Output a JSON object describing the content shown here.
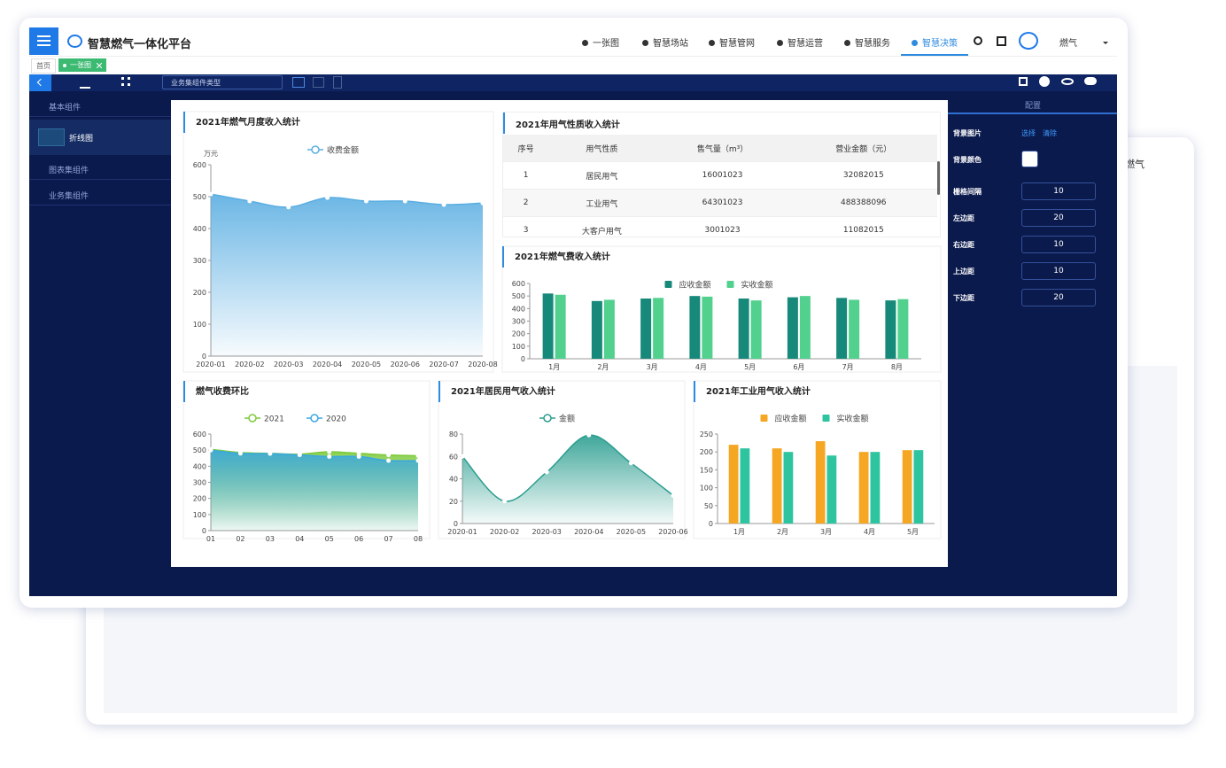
{
  "header": {
    "title": "智慧燃气一体化平台",
    "nav": [
      "一张图",
      "智慧场站",
      "智慧管网",
      "智慧运营",
      "智慧服务",
      "智慧决策"
    ],
    "user": "燃气"
  },
  "tabs": [
    "首页",
    "一张图"
  ],
  "toolbar": {
    "select": "业务集组件类型"
  },
  "sidebar": {
    "groups": [
      "基本组件",
      "图表集组件",
      "业务集组件"
    ],
    "item": "折线图"
  },
  "config": {
    "title": "配置",
    "background_image": {
      "label": "背景图片",
      "select": "选择",
      "clear": "清除"
    },
    "background_color": {
      "label": "背景颜色"
    },
    "fields": [
      {
        "label": "栅格间隔",
        "value": 10
      },
      {
        "label": "左边距",
        "value": 20
      },
      {
        "label": "右边距",
        "value": 10
      },
      {
        "label": "上边距",
        "value": 10
      },
      {
        "label": "下边距",
        "value": 20
      }
    ]
  },
  "back_window": {
    "user": "燃气"
  },
  "table": {
    "title": "2021年用气性质收入统计",
    "columns": [
      "序号",
      "用气性质",
      "售气量（m³）",
      "营业金额（元）"
    ],
    "rows": [
      [
        "1",
        "居民用气",
        "16001023",
        "32082015"
      ],
      [
        "2",
        "工业用气",
        "64301023",
        "488388096"
      ],
      [
        "3",
        "大客户用气",
        "3001023",
        "11082015"
      ]
    ]
  },
  "chart_data": [
    {
      "type": "line",
      "title": "2021年燃气月度收入统计",
      "y_label": "万元",
      "categories": [
        "2020-01",
        "2020-02",
        "2020-03",
        "2020-04",
        "2020-05",
        "2020-06",
        "2020-07",
        "2020-08"
      ],
      "series": [
        {
          "name": "收费金额",
          "color": "#5aaee2",
          "values": [
            508,
            486,
            467,
            497,
            486,
            486,
            475,
            480
          ]
        }
      ],
      "ylim": [
        0,
        600
      ],
      "yticks": [
        0,
        100,
        200,
        300,
        400,
        500,
        600
      ],
      "grid": false
    },
    {
      "type": "bar",
      "title": "2021年燃气费收入统计",
      "categories": [
        "1月",
        "2月",
        "3月",
        "4月",
        "5月",
        "6月",
        "7月",
        "8月"
      ],
      "series": [
        {
          "name": "应收金额",
          "color": "#17897a",
          "values": [
            520,
            460,
            480,
            500,
            480,
            490,
            485,
            465
          ]
        },
        {
          "name": "实收金额",
          "color": "#52d08e",
          "values": [
            510,
            470,
            485,
            495,
            465,
            500,
            470,
            475
          ]
        }
      ],
      "ylim": [
        0,
        600
      ],
      "yticks": [
        0,
        100,
        200,
        300,
        400,
        500,
        600
      ],
      "grid": false
    },
    {
      "type": "line",
      "title": "燃气收费环比",
      "categories": [
        "01",
        "02",
        "03",
        "04",
        "05",
        "06",
        "07",
        "08"
      ],
      "series": [
        {
          "name": "2021",
          "color": "#7cc93a",
          "values": [
            505,
            485,
            480,
            475,
            490,
            480,
            470,
            465
          ]
        },
        {
          "name": "2020",
          "color": "#3aa8e0",
          "values": [
            500,
            480,
            478,
            470,
            460,
            460,
            435,
            435
          ]
        }
      ],
      "ylim": [
        0,
        600
      ],
      "yticks": [
        0,
        100,
        200,
        300,
        400,
        500,
        600
      ],
      "grid": false
    },
    {
      "type": "line",
      "title": "2021年居民用气收入统计",
      "categories": [
        "2020-01",
        "2020-02",
        "2020-03",
        "2020-04",
        "2020-05",
        "2020-06"
      ],
      "series": [
        {
          "name": "金额",
          "color": "#2a9d8f",
          "values": [
            60,
            20,
            46,
            79,
            54,
            25
          ]
        }
      ],
      "ylim": [
        0,
        80
      ],
      "yticks": [
        0,
        20,
        40,
        60,
        80
      ],
      "grid": false
    },
    {
      "type": "bar",
      "title": "2021年工业用气收入统计",
      "categories": [
        "1月",
        "2月",
        "3月",
        "4月",
        "5月"
      ],
      "series": [
        {
          "name": "应收金额",
          "color": "#f5a623",
          "values": [
            220,
            210,
            230,
            200,
            205
          ]
        },
        {
          "name": "实收金额",
          "color": "#2ec4a0",
          "values": [
            210,
            200,
            190,
            200,
            205
          ]
        }
      ],
      "ylim": [
        0,
        250
      ],
      "yticks": [
        0,
        50,
        100,
        150,
        200,
        250
      ],
      "grid": false
    }
  ]
}
